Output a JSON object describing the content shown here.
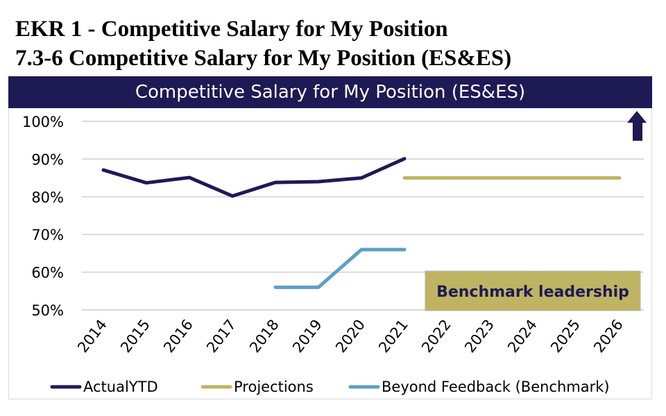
{
  "heading": {
    "line1": "EKR 1 - Competitive Salary for My Position",
    "line2": "7.3-6 Competitive Salary for My Position (ES&ES)"
  },
  "chart_data": {
    "type": "line",
    "title": "Competitive Salary for My Position (ES&ES)",
    "categories": [
      "2014",
      "2015",
      "2016",
      "2017",
      "2018",
      "2019",
      "2020",
      "2021",
      "2022",
      "2023",
      "2024",
      "2025",
      "2026"
    ],
    "ylim": [
      50,
      100
    ],
    "yticks": [
      "100%",
      "90%",
      "80%",
      "70%",
      "60%",
      "50%"
    ],
    "ytick_values": [
      100,
      90,
      80,
      70,
      60,
      50
    ],
    "grid": true,
    "legend_position": "bottom",
    "series": [
      {
        "name": "ActualYTD",
        "color": "#1e1a55",
        "values": [
          87.1,
          83.7,
          85.1,
          80.2,
          83.8,
          84.0,
          85.0,
          90.1,
          null,
          null,
          null,
          null,
          null
        ]
      },
      {
        "name": "Projections",
        "color": "#bfb462",
        "values": [
          null,
          null,
          null,
          null,
          null,
          null,
          null,
          85,
          85,
          85,
          85,
          85,
          85
        ]
      },
      {
        "name": "Beyond Feedback (Benchmark)",
        "color": "#5f9ec5",
        "values": [
          null,
          null,
          null,
          null,
          56,
          56,
          66,
          66,
          null,
          null,
          null,
          null,
          null
        ]
      }
    ],
    "annotations": {
      "benchmark_label": "Benchmark leadership",
      "benchmark_box_color": "#bfb462",
      "direction_arrow": "up-arrow-icon",
      "arrow_color": "#1e1a55"
    }
  }
}
